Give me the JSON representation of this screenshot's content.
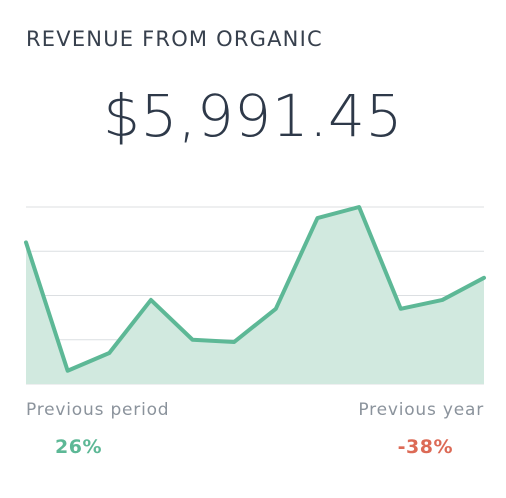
{
  "widget": {
    "title": "REVENUE FROM ORGANIC",
    "value": "$5,991.45"
  },
  "comparison": {
    "previous_period_label": "Previous period",
    "previous_period_value": "26%",
    "previous_year_label": "Previous year",
    "previous_year_value": "-38%"
  },
  "colors": {
    "line": "#5db896",
    "area": "#d1e9df",
    "grid": "#dcdfe2",
    "positive": "#5db896",
    "negative": "#dc6a56"
  },
  "chart_data": {
    "type": "area",
    "x": [
      1,
      2,
      3,
      4,
      5,
      6,
      7,
      8,
      9,
      10,
      11,
      12
    ],
    "values": [
      32,
      3,
      7,
      19,
      10,
      9.5,
      17,
      37.5,
      40,
      17,
      19,
      24
    ],
    "ylim": [
      0,
      40
    ],
    "grid": true,
    "title": "",
    "xlabel": "",
    "ylabel": ""
  }
}
